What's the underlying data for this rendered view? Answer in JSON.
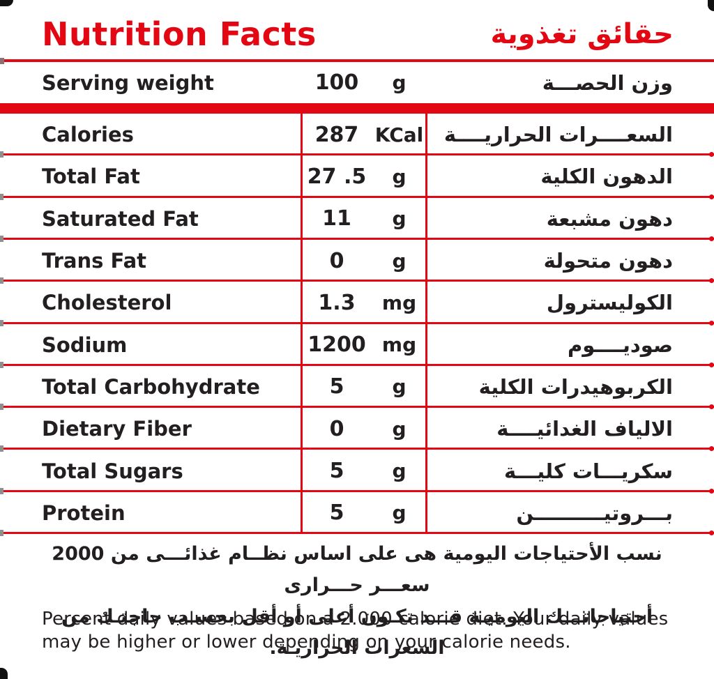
{
  "colors": {
    "red": "#e30613",
    "text": "#231f20",
    "frame": "#111111"
  },
  "header": {
    "title_en": "Nutrition Facts",
    "title_ar": "حقائق تغذوية"
  },
  "serving": {
    "label_en": "Serving weight",
    "value": "100",
    "unit": "g",
    "label_ar": "وزن الحصـــة"
  },
  "rows": [
    {
      "label_en": "Calories",
      "value": "287",
      "unit": "KCal",
      "label_ar": "السعــــرات الحراريــــة"
    },
    {
      "label_en": "Total Fat",
      "value": "27 .5",
      "unit": "g",
      "label_ar": "الدهون الكلية"
    },
    {
      "label_en": "Saturated Fat",
      "value": "11",
      "unit": "g",
      "label_ar": "دهون مشبعة"
    },
    {
      "label_en": "Trans Fat",
      "value": "0",
      "unit": "g",
      "label_ar": "دهون متحولة"
    },
    {
      "label_en": "Cholesterol",
      "value": "1.3",
      "unit": "mg",
      "label_ar": "الكوليسترول"
    },
    {
      "label_en": "Sodium",
      "value": "1200",
      "unit": "mg",
      "label_ar": "صوديــــوم"
    },
    {
      "label_en": "Total Carbohydrate",
      "value": "5",
      "unit": "g",
      "label_ar": "الكربوهيدرات الكلية"
    },
    {
      "label_en": "Dietary Fiber",
      "value": "0",
      "unit": "g",
      "label_ar": "الالياف الغدائيــــة"
    },
    {
      "label_en": "Total Sugars",
      "value": "5",
      "unit": "g",
      "label_ar": "سكريـــات كليـــة"
    },
    {
      "label_en": "Protein",
      "value": "5",
      "unit": "g",
      "label_ar": "بـــروتيــــــــــن"
    }
  ],
  "footer": {
    "ar_lines": [
      "نسب الأحتياجات اليومية هى على اساس نظــام غذائـــى من 2000 سعـــر حـــرارى",
      "أحتياجاتـــك اليوميـة قـــد تكـون أعلى أو أقل بحسـب حاجتـك من السعرات الحراريـة."
    ],
    "en_lines": [
      "Percent daily values based on a 2.000 calorie diet. Your daily values",
      "may be higher or lower depending on your calorie needs."
    ]
  }
}
